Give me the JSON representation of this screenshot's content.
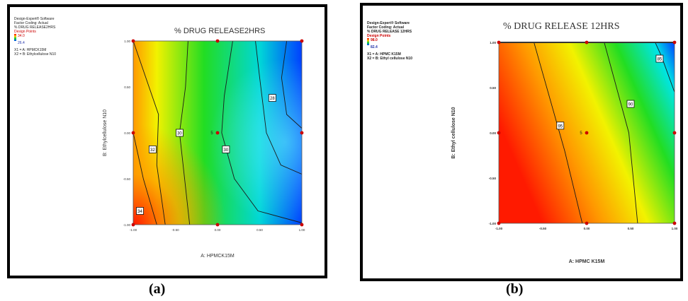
{
  "chart_data": [
    {
      "type": "heatmap",
      "panel_label": "(a)",
      "title": "% DRUG RELEASE2HRS",
      "xlabel": "A: HPMCK15M",
      "ylabel": "B: Ethylcellulose N10",
      "xlim": [
        -1.0,
        1.0
      ],
      "ylim": [
        -1.0,
        1.0
      ],
      "x_ticks": [
        "-1.00",
        "-0.50",
        "0.00",
        "0.50",
        "1.00"
      ],
      "y_ticks": [
        "-1.00",
        "-0.50",
        "0.00",
        "0.50",
        "1.00"
      ],
      "side_info": [
        "Design-Expert® Software",
        "Factor Coding: Actual",
        "% DRUG RELEASE2HRS",
        "Design Points",
        "34.0",
        "26.4",
        "X1 = A: HPMCK15M",
        "X2 = B: Ethylcellulose N10"
      ],
      "legend_high": "34.0",
      "legend_low": "26.4",
      "contour_labels": [
        {
          "x": -0.92,
          "y": -0.85,
          "label": "34"
        },
        {
          "x": -0.77,
          "y": -0.18,
          "label": "32"
        },
        {
          "x": -0.45,
          "y": 0.0,
          "label": "30"
        },
        {
          "x": 0.1,
          "y": -0.18,
          "label": "30"
        },
        {
          "x": 0.65,
          "y": 0.38,
          "label": "28"
        }
      ],
      "design_points": [
        {
          "x": -1.0,
          "y": -1.0
        },
        {
          "x": 0.0,
          "y": -1.0
        },
        {
          "x": 1.0,
          "y": -1.0
        },
        {
          "x": -1.0,
          "y": 0.0
        },
        {
          "x": 0.0,
          "y": 0.0
        },
        {
          "x": 1.0,
          "y": 0.0
        },
        {
          "x": -1.0,
          "y": 1.0
        },
        {
          "x": 0.0,
          "y": 1.0
        },
        {
          "x": 1.0,
          "y": 1.0
        }
      ],
      "center_label": "5"
    },
    {
      "type": "heatmap",
      "panel_label": "(b)",
      "title": "% DRUG RELEASE 12HRS",
      "xlabel": "A: HPMC K15M",
      "ylabel": "B: Ethyl cellulose N10",
      "xlim": [
        -1.0,
        1.0
      ],
      "ylim": [
        -1.0,
        1.0
      ],
      "x_ticks": [
        "-1.00",
        "-0.50",
        "0.00",
        "0.50",
        "1.00"
      ],
      "y_ticks": [
        "-1.00",
        "-0.50",
        "0.00",
        "0.50",
        "1.00"
      ],
      "side_info": [
        "Design-Expert® Software",
        "Factor Coding: Actual",
        "% DRUG RELEASE 12HRS",
        "Design Points",
        "98.0",
        "82.4",
        "X1 = A: HPMC K15M",
        "X2 = B: Ethyl cellulose N10"
      ],
      "legend_high": "98.0",
      "legend_low": "82.4",
      "contour_labels": [
        {
          "x": -0.3,
          "y": 0.08,
          "label": "95"
        },
        {
          "x": 0.5,
          "y": 0.32,
          "label": "90"
        },
        {
          "x": 0.83,
          "y": 0.82,
          "label": "85"
        }
      ],
      "design_points": [
        {
          "x": -1.0,
          "y": -1.0
        },
        {
          "x": 0.0,
          "y": -1.0
        },
        {
          "x": 1.0,
          "y": -1.0
        },
        {
          "x": -1.0,
          "y": 0.0
        },
        {
          "x": 0.0,
          "y": 0.0
        },
        {
          "x": 1.0,
          "y": 0.0
        },
        {
          "x": -1.0,
          "y": 1.0
        },
        {
          "x": 0.0,
          "y": 1.0
        },
        {
          "x": 1.0,
          "y": 1.0
        }
      ],
      "center_label": "5"
    }
  ],
  "colors": {
    "red": "#ff1a00",
    "orange": "#ff9900",
    "yellow": "#f2f200",
    "green": "#22dd22",
    "cyan": "#00d7d7",
    "blue": "#0040ff",
    "design_point": "#cc0000",
    "contour": "#1a1a1a"
  }
}
